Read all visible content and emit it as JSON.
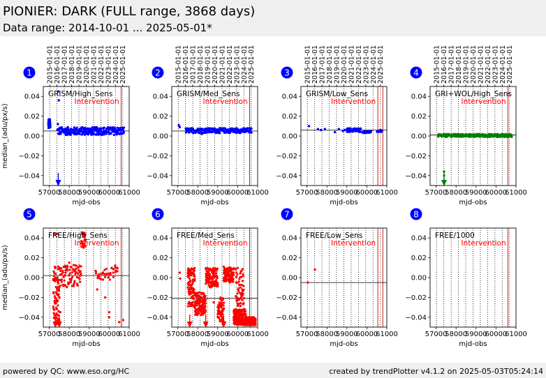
{
  "header": {
    "title": "PIONIER: DARK (FULL range, 3868 days)",
    "subtitle": "Data range: 2014-10-01 ... 2025-05-01*"
  },
  "footer": {
    "left": "powered by QC: www.eso.org/HC",
    "right": "created by trendPlotter v4.1.2 on 2025-05-03T05:24:14"
  },
  "colors": {
    "blue": "#0000ff",
    "green": "#008000",
    "red": "#ff0000",
    "badge": "#0000ff"
  },
  "shared": {
    "xlabel": "mjd-obs",
    "ylabel": "median_(adu/px/s)",
    "annotation": "Intervention",
    "xlim": [
      56700,
      61000
    ],
    "ylim": [
      -0.05,
      0.05
    ],
    "xticks": [
      57000,
      58000,
      59000,
      60000,
      61000
    ],
    "xtick_labels": [
      "57000",
      "58000",
      "59000",
      "60000",
      "61000"
    ],
    "yticks": [
      -0.04,
      -0.02,
      0.0,
      0.02,
      0.04
    ],
    "ytick_labels": [
      "−0.04",
      "−0.02",
      "0.00",
      "0.02",
      "0.04"
    ],
    "date_ticks": [
      {
        "label": "2015-01-01",
        "mjd": 57023
      },
      {
        "label": "2016-01-01",
        "mjd": 57388
      },
      {
        "label": "2017-01-01",
        "mjd": 57754
      },
      {
        "label": "2018-01-01",
        "mjd": 58119
      },
      {
        "label": "2019-01-01",
        "mjd": 58484
      },
      {
        "label": "2020-01-01",
        "mjd": 58849
      },
      {
        "label": "2021-01-01",
        "mjd": 59215
      },
      {
        "label": "2022-01-01",
        "mjd": 59580
      },
      {
        "label": "2023-01-01",
        "mjd": 59945
      },
      {
        "label": "2024-01-01",
        "mjd": 60310
      },
      {
        "label": "2025-01-01",
        "mjd": 60676
      }
    ]
  },
  "chart_data": [
    {
      "type": "scatter",
      "badge": "1",
      "title": "GRISM/High_Sens",
      "color": "blue",
      "intervention_mjd": [
        60600
      ],
      "reference": 0.005,
      "bands": [
        {
          "x": [
            57400,
            60750
          ],
          "y": [
            0.001,
            0.009
          ],
          "step": 35
        },
        {
          "x": [
            56950,
            57050
          ],
          "y": [
            0.008,
            0.017
          ],
          "step": 10
        }
      ],
      "points": [
        [
          57450,
          0.045
        ],
        [
          57480,
          0.036
        ],
        [
          57430,
          0.012
        ]
      ],
      "arrows_down": [
        57450
      ]
    },
    {
      "type": "scatter",
      "badge": "2",
      "title": "GRISM/Med_Sens",
      "color": "blue",
      "intervention_mjd": [
        60600
      ],
      "reference": 0.005,
      "bands": [
        {
          "x": [
            57400,
            60700
          ],
          "y": [
            0.003,
            0.008
          ],
          "step": 40
        }
      ],
      "points": [
        [
          57050,
          0.011
        ],
        [
          57100,
          0.009
        ],
        [
          58200,
          0.002
        ],
        [
          59100,
          0.003
        ]
      ],
      "arrows_down": []
    },
    {
      "type": "scatter",
      "badge": "3",
      "title": "GRISM/Low_Sens",
      "color": "blue",
      "intervention_mjd": [
        60550,
        60800
      ],
      "reference": 0.006,
      "bands": [
        {
          "x": [
            59000,
            59700
          ],
          "y": [
            0.004,
            0.008
          ],
          "step": 40
        },
        {
          "x": [
            59800,
            60200
          ],
          "y": [
            0.003,
            0.005
          ],
          "step": 40
        },
        {
          "x": [
            60500,
            60750
          ],
          "y": [
            0.004,
            0.006
          ],
          "step": 40
        }
      ],
      "points": [
        [
          57100,
          0.01
        ],
        [
          57550,
          0.007
        ],
        [
          57700,
          0.006
        ],
        [
          57900,
          0.007
        ],
        [
          58400,
          0.004
        ],
        [
          58600,
          0.007
        ],
        [
          58800,
          0.005
        ],
        [
          58900,
          0.006
        ]
      ],
      "arrows_down": []
    },
    {
      "type": "scatter",
      "badge": "4",
      "title": "GRI+WOL/High_Sens",
      "color": "green",
      "intervention_mjd": [
        60600
      ],
      "reference": 0.001,
      "bands": [
        {
          "x": [
            57100,
            60800
          ],
          "y": [
            -0.001,
            0.002
          ],
          "step": 35
        }
      ],
      "points": [
        [
          57400,
          -0.036
        ],
        [
          57400,
          -0.04
        ]
      ],
      "arrows_down": [
        57400
      ]
    },
    {
      "type": "scatter",
      "badge": "5",
      "title": "FREE/High_Sens",
      "color": "red",
      "intervention_mjd": [
        60600
      ],
      "reference": 0.002,
      "bands": [
        {
          "x": [
            57200,
            57500
          ],
          "y": [
            -0.047,
            0.012
          ],
          "step": 12
        },
        {
          "x": [
            57500,
            58600
          ],
          "y": [
            -0.01,
            0.013
          ],
          "step": 40
        },
        {
          "x": [
            58600,
            58800
          ],
          "y": [
            0.03,
            0.046
          ],
          "step": 25
        },
        {
          "x": [
            59300,
            60400
          ],
          "y": [
            -0.003,
            0.01
          ],
          "step": 90
        }
      ],
      "points": [
        [
          57250,
          0.044
        ],
        [
          57400,
          0.044
        ],
        [
          58000,
          0.015
        ],
        [
          58700,
          0.044
        ],
        [
          59400,
          -0.012
        ],
        [
          59800,
          -0.02
        ],
        [
          60000,
          -0.04
        ],
        [
          60000,
          -0.035
        ],
        [
          60500,
          -0.045
        ],
        [
          60700,
          -0.043
        ],
        [
          57550,
          -0.035
        ],
        [
          60300,
          0.012
        ]
      ],
      "arrows_down": [
        57300,
        57500
      ]
    },
    {
      "type": "scatter",
      "badge": "6",
      "title": "FREE/Med_Sens",
      "color": "red",
      "intervention_mjd": [
        60600
      ],
      "reference": -0.021,
      "bands": [
        {
          "x": [
            57500,
            57850
          ],
          "y": [
            -0.03,
            0.01
          ],
          "step": 10
        },
        {
          "x": [
            57850,
            58400
          ],
          "y": [
            -0.038,
            -0.015
          ],
          "step": 12
        },
        {
          "x": [
            58400,
            59000
          ],
          "y": [
            -0.01,
            0.01
          ],
          "step": 15
        },
        {
          "x": [
            59000,
            59300
          ],
          "y": [
            -0.045,
            -0.02
          ],
          "step": 15
        },
        {
          "x": [
            59300,
            59800
          ],
          "y": [
            -0.005,
            0.01
          ],
          "step": 15
        },
        {
          "x": [
            59800,
            60400
          ],
          "y": [
            -0.048,
            -0.032
          ],
          "step": 8
        },
        {
          "x": [
            60400,
            60900
          ],
          "y": [
            -0.048,
            -0.04
          ],
          "step": 8
        },
        {
          "x": [
            59900,
            60300
          ],
          "y": [
            -0.03,
            0.011
          ],
          "step": 20
        }
      ],
      "points": [
        [
          57100,
          0.005
        ],
        [
          57120,
          -0.001
        ],
        [
          59300,
          0.011
        ],
        [
          58800,
          -0.025
        ]
      ],
      "arrows_down": [
        57600,
        58400,
        59300
      ]
    },
    {
      "type": "scatter",
      "badge": "7",
      "title": "FREE/Low_Sens",
      "color": "red",
      "intervention_mjd": [
        60550,
        60800
      ],
      "reference": -0.005,
      "bands": [],
      "points": [
        [
          57050,
          -0.005
        ],
        [
          57400,
          0.008
        ]
      ],
      "arrows_down": []
    },
    {
      "type": "scatter",
      "badge": "8",
      "title": "FREE/1000",
      "color": "red",
      "intervention_mjd": [
        60600
      ],
      "reference": null,
      "bands": [],
      "points": [],
      "arrows_down": []
    }
  ]
}
